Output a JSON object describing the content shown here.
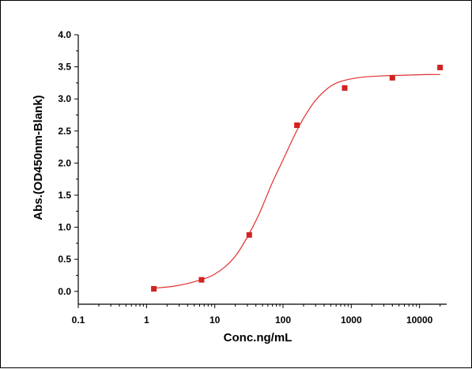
{
  "chart_data": {
    "type": "scatter",
    "title": "",
    "xlabel": "Conc.ng/mL",
    "ylabel": "Abs.(OD450nm-Blank)",
    "x_scale": "log",
    "xlim": [
      0.1,
      25000
    ],
    "ylim": [
      -0.2,
      4.0
    ],
    "x_ticks": [
      0.1,
      1,
      10,
      100,
      1000,
      10000
    ],
    "x_tick_labels": [
      "0.1",
      "1",
      "10",
      "100",
      "1000",
      "10000"
    ],
    "y_ticks": [
      0.0,
      0.5,
      1.0,
      1.5,
      2.0,
      2.5,
      3.0,
      3.5,
      4.0
    ],
    "y_tick_labels": [
      "0.0",
      "0.5",
      "1.0",
      "1.5",
      "2.0",
      "2.5",
      "3.0",
      "3.5",
      "4.0"
    ],
    "grid": false,
    "series": [
      {
        "kind": "points",
        "x": [
          1.28,
          6.4,
          32,
          160,
          800,
          4000,
          20000
        ],
        "y": [
          0.04,
          0.18,
          0.88,
          2.59,
          3.17,
          3.33,
          3.49
        ]
      },
      {
        "kind": "fit-curve",
        "x": [
          1.28,
          2.5,
          5,
          10,
          20,
          40,
          70,
          100,
          150,
          200,
          300,
          500,
          800,
          1500,
          3000,
          6000,
          12000,
          20000
        ],
        "y": [
          0.05,
          0.08,
          0.15,
          0.27,
          0.55,
          1.1,
          1.7,
          2.05,
          2.45,
          2.7,
          2.98,
          3.2,
          3.29,
          3.34,
          3.36,
          3.37,
          3.38,
          3.38
        ]
      }
    ],
    "colors": {
      "points": "#d22222",
      "curve": "#e03030",
      "axis": "#000000"
    }
  }
}
